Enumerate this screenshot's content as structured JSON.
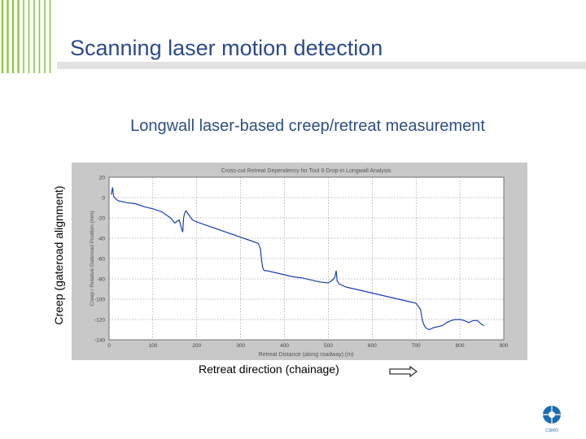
{
  "slide": {
    "title": "Scanning laser motion detection",
    "heading": "Longwall laser-based creep/retreat measurement",
    "y_axis_label": "Creep (gateroad alignment)",
    "x_direction_label": "Retreat direction (chainage)"
  },
  "logo": {
    "text": "CSIRO",
    "icon": "csiro-logo"
  },
  "colors": {
    "accent_green": "#8fc63f",
    "title_blue": "#2d4a8a",
    "series_blue": "#1a3fb0"
  },
  "chart_data": {
    "type": "line",
    "title": "Cross-cut Retreat Dependency for Tool 9 Drop-in Longwall Analysis",
    "xlabel": "Retreat Distance (along roadway) (m)",
    "ylabel": "Creep / Relative Gateroad Position (mm)",
    "xlim": [
      0,
      900
    ],
    "ylim": [
      -140,
      20
    ],
    "x_ticks": [
      "0",
      "100",
      "200",
      "300",
      "400",
      "500",
      "600",
      "700",
      "800",
      "900"
    ],
    "y_ticks": [
      "20",
      "0",
      "-20",
      "-40",
      "-60",
      "-80",
      "-100",
      "-120",
      "-140"
    ],
    "grid": true,
    "series": [
      {
        "x": [
          5,
          8,
          10,
          12,
          15,
          20,
          40,
          60,
          80,
          100,
          120,
          140,
          150,
          160,
          165,
          168,
          170,
          172,
          175,
          180,
          185,
          190,
          200,
          220,
          240,
          260,
          280,
          300,
          320,
          340,
          345,
          348,
          350,
          352,
          355,
          360,
          380,
          400,
          420,
          440,
          460,
          480,
          500,
          510,
          515,
          518,
          520,
          525,
          530,
          540,
          560,
          580,
          600,
          620,
          640,
          660,
          680,
          700,
          710,
          715,
          720,
          725,
          730,
          740,
          750,
          760,
          770,
          780,
          790,
          800,
          810,
          820,
          830,
          840,
          850,
          855
        ],
        "values": [
          3,
          10,
          2,
          0,
          -1,
          -3,
          -5,
          -6,
          -9,
          -11,
          -14,
          -20,
          -25,
          -22,
          -30,
          -34,
          -20,
          -16,
          -13,
          -16,
          -19,
          -22,
          -24,
          -27,
          -30,
          -33,
          -36,
          -39,
          -42,
          -45,
          -50,
          -62,
          -68,
          -71,
          -72,
          -72,
          -74,
          -76,
          -78,
          -79,
          -81,
          -83,
          -84,
          -81,
          -78,
          -72,
          -82,
          -85,
          -86,
          -88,
          -90,
          -92,
          -94,
          -96,
          -98,
          -100,
          -102,
          -104,
          -110,
          -122,
          -127,
          -129,
          -130,
          -128,
          -127,
          -126,
          -123,
          -121,
          -120,
          -120,
          -121,
          -123,
          -121,
          -121,
          -125,
          -126
        ]
      }
    ]
  }
}
